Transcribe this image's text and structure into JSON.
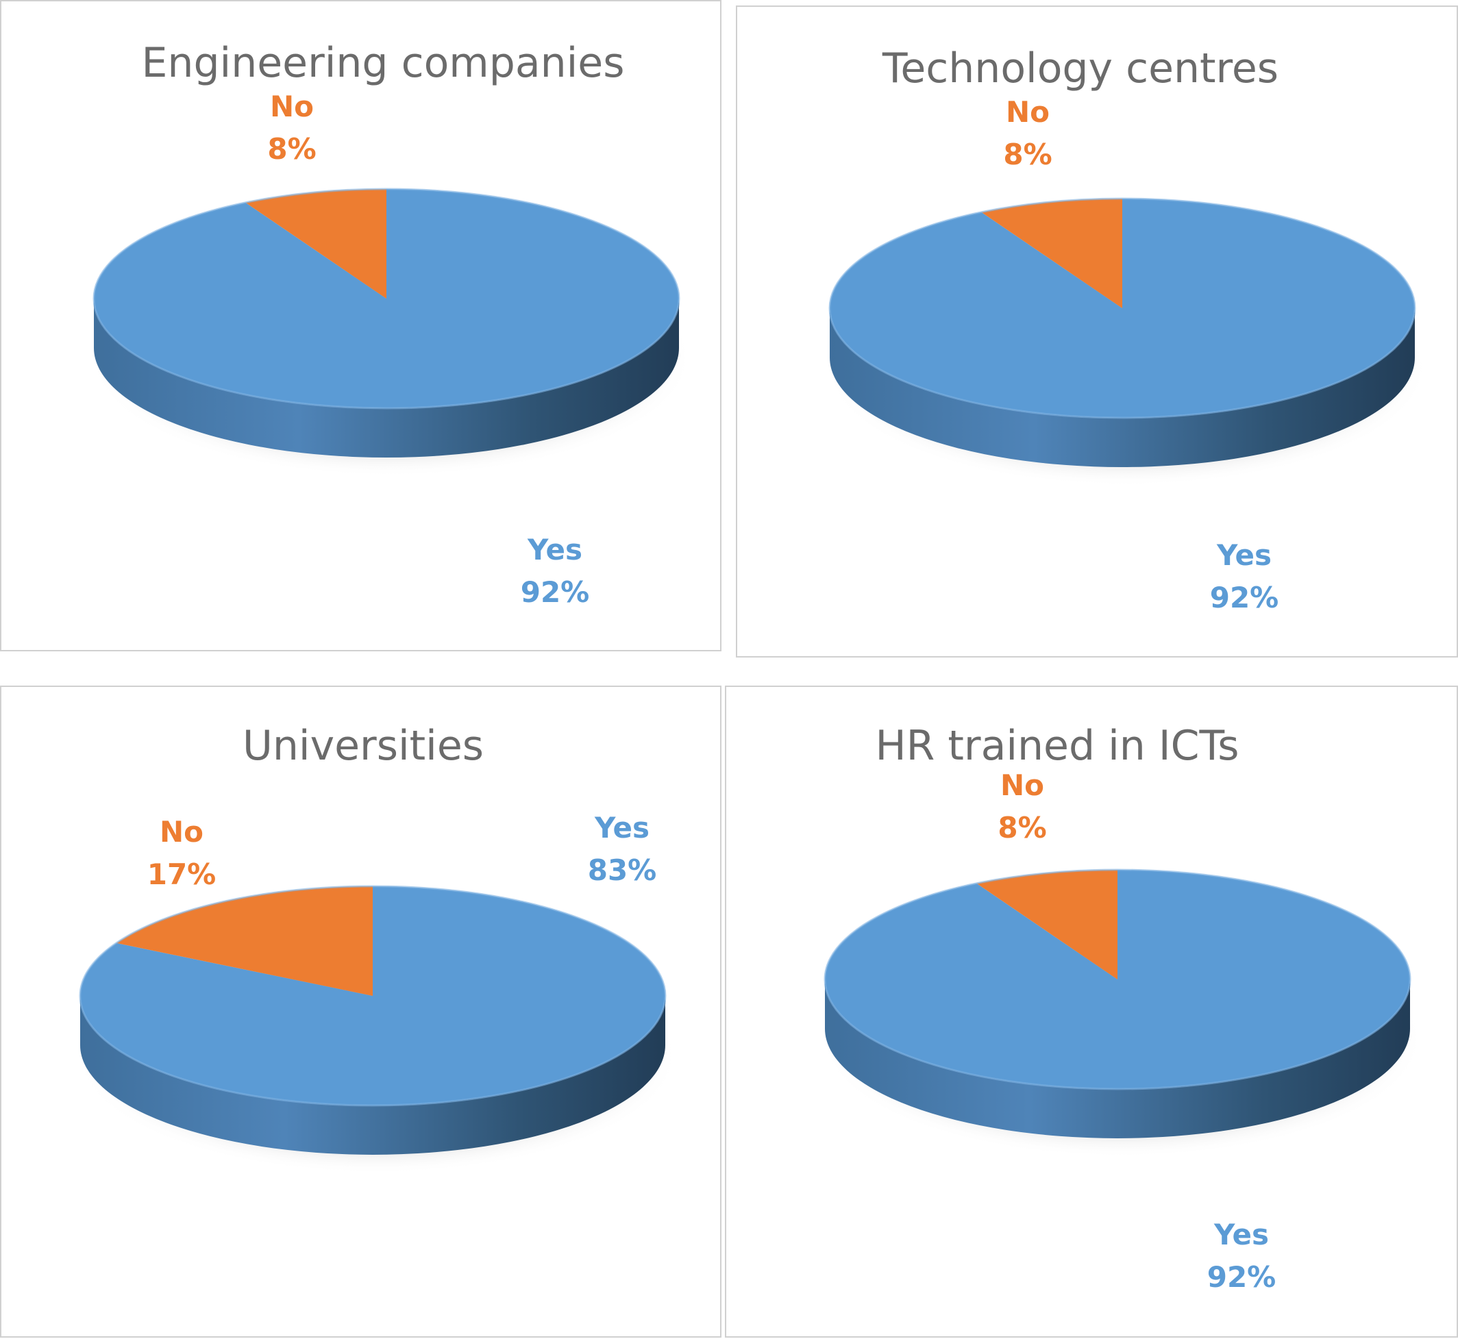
{
  "colors": {
    "yes": "#5b9bd5",
    "no": "#ed7d31",
    "title": "#6b6b6b",
    "border": "#d0d0d0"
  },
  "chart_data": [
    {
      "type": "pie",
      "title": "Engineering companies",
      "slices": [
        {
          "label": "Yes",
          "value": 92,
          "value_label": "92%"
        },
        {
          "label": "No",
          "value": 8,
          "value_label": "8%"
        }
      ]
    },
    {
      "type": "pie",
      "title": "Technology centres",
      "slices": [
        {
          "label": "Yes",
          "value": 92,
          "value_label": "92%"
        },
        {
          "label": "No",
          "value": 8,
          "value_label": "8%"
        }
      ]
    },
    {
      "type": "pie",
      "title": "Universities",
      "slices": [
        {
          "label": "Yes",
          "value": 83,
          "value_label": "83%"
        },
        {
          "label": "No",
          "value": 17,
          "value_label": "17%"
        }
      ]
    },
    {
      "type": "pie",
      "title": "HR trained in ICTs",
      "slices": [
        {
          "label": "Yes",
          "value": 92,
          "value_label": "92%"
        },
        {
          "label": "No",
          "value": 8,
          "value_label": "8%"
        }
      ]
    }
  ]
}
